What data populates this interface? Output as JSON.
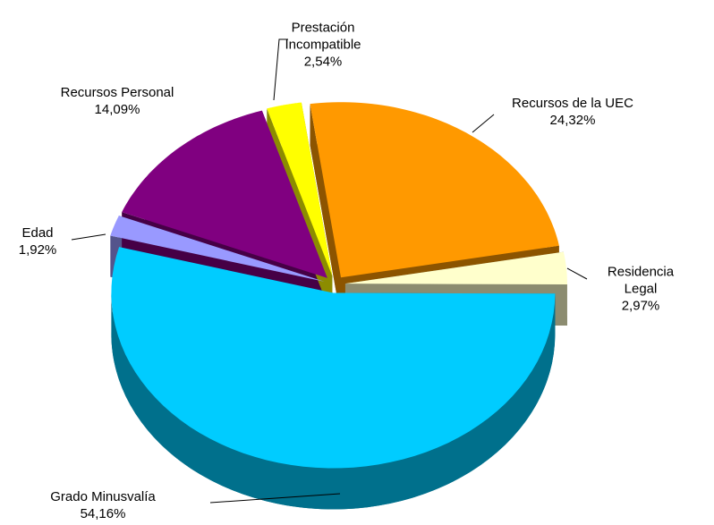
{
  "chart_data": {
    "type": "pie3d",
    "categories": [
      "Recursos de la UEC",
      "Residencia Legal",
      "Grado Minusvalía",
      "Edad",
      "Recursos Personal",
      "Prestación\nIncompatible"
    ],
    "values": [
      24.32,
      2.97,
      54.16,
      1.92,
      14.09,
      2.54
    ],
    "value_labels": [
      "24,32%",
      "2,97%",
      "54,16%",
      "1,92%",
      "14,09%",
      "2,54%"
    ],
    "colors": [
      "#ff9900",
      "#ffffcc",
      "#00ccff",
      "#9999ff",
      "#800080",
      "#ffff00"
    ]
  }
}
